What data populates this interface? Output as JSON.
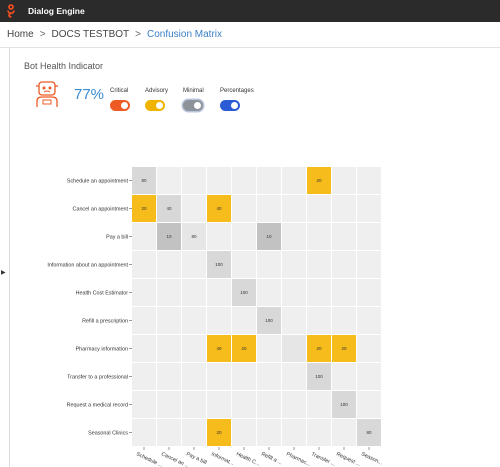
{
  "app": {
    "title": "Dialog Engine"
  },
  "breadcrumb": {
    "home": "Home",
    "bot": "DOCS TESTBOT",
    "current": "Confusion Matrix",
    "separator": ">"
  },
  "health": {
    "title": "Bot Health Indicator",
    "percent": "77%"
  },
  "toggles": [
    {
      "label": "Critical",
      "color": "#ee5a24",
      "on": true
    },
    {
      "label": "Advisory",
      "color": "#f0b400",
      "on": true
    },
    {
      "label": "Minimal",
      "color": "#8e9299",
      "on": true
    },
    {
      "label": "Percentages",
      "color": "#2c5bd6",
      "on": true
    }
  ],
  "colors": {
    "empty": "#efefef",
    "advisory": "#f6bc1b",
    "minimal": "#d8d8d8",
    "minimal_dark": "#c2c2c2",
    "light": "#e6e6e6"
  },
  "chart_data": {
    "type": "heatmap",
    "rows": [
      "Schedule an appointment",
      "Cancel an appointment",
      "Pay a bill",
      "Information about an appointment",
      "Health Cost Estimator",
      "Refill a prescription",
      "Pharmacy information",
      "Transfer to a professional",
      "Request a medical record",
      "Seasonal Clinics"
    ],
    "columns": [
      "Schedule ...",
      "Cancel an ...",
      "Pay a bill",
      "Informat...",
      "Health C...",
      "Refill a ...",
      "Pharmac...",
      "Transfer ...",
      "Request ...",
      "Season..."
    ],
    "cells": [
      {
        "row": 0,
        "col": 0,
        "value": "80",
        "level": "minimal"
      },
      {
        "row": 0,
        "col": 7,
        "value": "20",
        "level": "advisory"
      },
      {
        "row": 1,
        "col": 0,
        "value": "20",
        "level": "advisory"
      },
      {
        "row": 1,
        "col": 1,
        "value": "40",
        "level": "minimal"
      },
      {
        "row": 1,
        "col": 3,
        "value": "40",
        "level": "advisory"
      },
      {
        "row": 2,
        "col": 1,
        "value": "10",
        "level": "minimal_dark"
      },
      {
        "row": 2,
        "col": 2,
        "value": "80",
        "level": "light"
      },
      {
        "row": 2,
        "col": 5,
        "value": "10",
        "level": "minimal_dark"
      },
      {
        "row": 3,
        "col": 3,
        "value": "100",
        "level": "minimal"
      },
      {
        "row": 4,
        "col": 4,
        "value": "100",
        "level": "minimal"
      },
      {
        "row": 5,
        "col": 5,
        "value": "100",
        "level": "minimal"
      },
      {
        "row": 6,
        "col": 3,
        "value": "40",
        "level": "advisory"
      },
      {
        "row": 6,
        "col": 4,
        "value": "20",
        "level": "advisory"
      },
      {
        "row": 6,
        "col": 6,
        "value": "",
        "level": "light"
      },
      {
        "row": 6,
        "col": 7,
        "value": "20",
        "level": "advisory"
      },
      {
        "row": 6,
        "col": 8,
        "value": "20",
        "level": "advisory"
      },
      {
        "row": 7,
        "col": 7,
        "value": "100",
        "level": "minimal"
      },
      {
        "row": 8,
        "col": 8,
        "value": "100",
        "level": "minimal"
      },
      {
        "row": 9,
        "col": 3,
        "value": "20",
        "level": "advisory"
      },
      {
        "row": 9,
        "col": 9,
        "value": "80",
        "level": "minimal"
      }
    ]
  }
}
